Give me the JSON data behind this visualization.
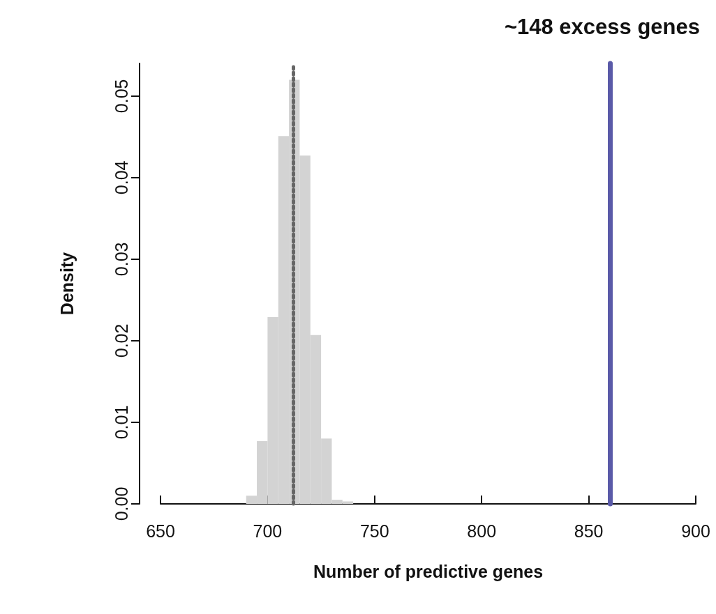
{
  "chart_data": {
    "type": "histogram",
    "title": "~148 excess genes",
    "xlabel": "Number of predictive genes",
    "ylabel": "Density",
    "bins": [
      690,
      695,
      700,
      705,
      710,
      715,
      720,
      725,
      730,
      735,
      740
    ],
    "values": [
      0.001,
      0.0077,
      0.0229,
      0.0451,
      0.052,
      0.0427,
      0.0207,
      0.008,
      0.0005,
      0.0003
    ],
    "color": "#d3d3d3",
    "xlim": [
      650,
      900
    ],
    "xticks": [
      650,
      700,
      750,
      800,
      850,
      900
    ],
    "ylim": [
      0,
      0.054
    ],
    "yticks": [
      {
        "value": 0,
        "label": "0.00"
      },
      {
        "value": 0.01,
        "label": "0.01"
      },
      {
        "value": 0.02,
        "label": "0.02"
      },
      {
        "value": 0.03,
        "label": "0.03"
      },
      {
        "value": 0.04,
        "label": "0.04"
      },
      {
        "value": 0.05,
        "label": "0.05"
      }
    ],
    "ref_lines": [
      {
        "axis": "x",
        "value": 712,
        "color": "#666666",
        "line_style": "dotted"
      },
      {
        "axis": "x",
        "value": 860,
        "color": "#5a5aa8",
        "line_style": "solid"
      }
    ],
    "grid": false,
    "legend": false
  }
}
